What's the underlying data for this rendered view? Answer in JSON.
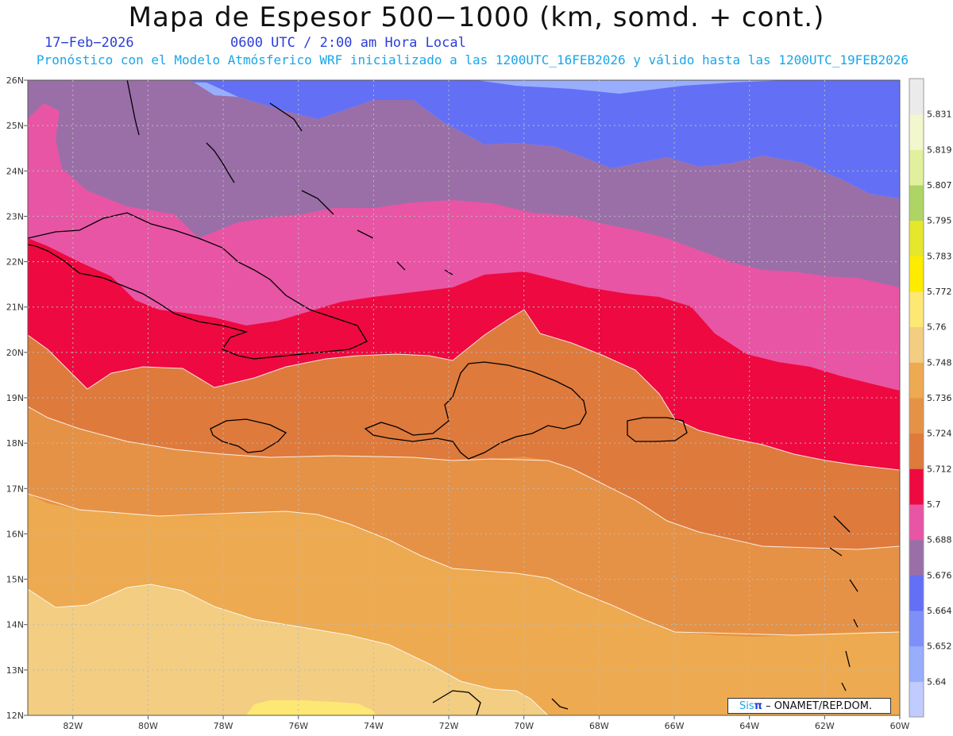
{
  "header": {
    "title": "Mapa de Espesor 500−1000 (km, somd. + cont.)",
    "date": "17−Feb−2026",
    "time": "0600 UTC / 2:00 am Hora Local",
    "description": "Pronóstico con el Modelo Atmósferico WRF inicializado a las 1200UTC_16FEB2026 y válido hasta las  1200UTC_19FEB2026"
  },
  "map": {
    "lat_labels": [
      "12N",
      "13N",
      "14N",
      "15N",
      "16N",
      "17N",
      "18N",
      "19N",
      "20N",
      "21N",
      "22N",
      "23N",
      "24N",
      "25N",
      "26N"
    ],
    "lon_labels": [
      "82W",
      "80W",
      "78W",
      "76W",
      "74W",
      "72W",
      "70W",
      "68W",
      "66W",
      "64W",
      "62W",
      "60W"
    ],
    "lat_range": [
      12,
      26
    ],
    "lon_range": [
      -83.2,
      -60
    ],
    "grid": true
  },
  "colorbar": {
    "labels": [
      "5.64",
      "5.652",
      "5.664",
      "5.676",
      "5.688",
      "5.7",
      "5.712",
      "5.724",
      "5.736",
      "5.748",
      "5.76",
      "5.772",
      "5.783",
      "5.795",
      "5.807",
      "5.819",
      "5.831"
    ],
    "colors": [
      "#c0ccff",
      "#98aefc",
      "#7e90f8",
      "#6370f5",
      "#9a6fa8",
      "#e855a4",
      "#ee0940",
      "#de7a3c",
      "#e69246",
      "#eeaa50",
      "#f2cd82",
      "#fde874",
      "#fdeb00",
      "#e4e72a",
      "#aed563",
      "#e0f09c",
      "#f2f7ce",
      "#ebebeb"
    ]
  },
  "attribution": {
    "sis": "Sis",
    "pi": "π",
    "rest": " – ONAMET/REP.DOM."
  },
  "palette": {
    "blue_light": "#98aefc",
    "blue": "#6370f5",
    "purple": "#9a6fa8",
    "pink": "#e855a4",
    "red": "#ee0940",
    "orange_dark": "#de7a3c",
    "orange": "#e69246",
    "orange_light": "#eeaa50",
    "tan": "#f2cd82",
    "yellow": "#fde874"
  }
}
